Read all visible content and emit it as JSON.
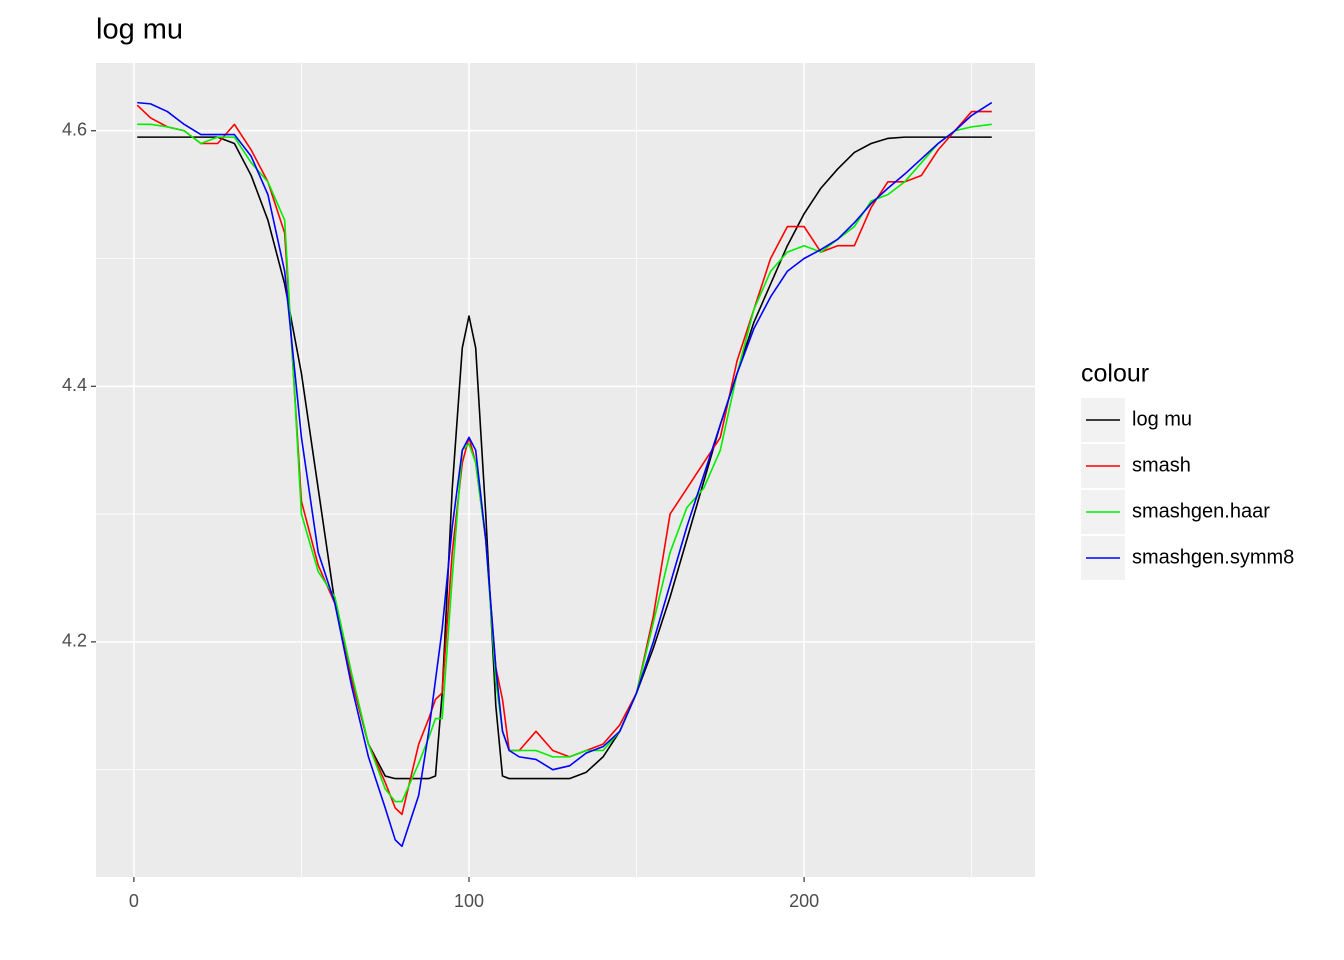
{
  "chart_data": {
    "type": "line",
    "title": "log mu",
    "legend_title": "colour",
    "legend_position": "right",
    "grid": true,
    "x": [
      1,
      5,
      10,
      15,
      20,
      25,
      30,
      35,
      40,
      45,
      50,
      55,
      60,
      65,
      70,
      75,
      78,
      80,
      85,
      88,
      90,
      92,
      95,
      98,
      100,
      102,
      105,
      108,
      110,
      112,
      115,
      120,
      125,
      130,
      135,
      140,
      145,
      150,
      155,
      160,
      165,
      170,
      175,
      180,
      185,
      190,
      195,
      200,
      205,
      210,
      215,
      220,
      225,
      230,
      235,
      240,
      245,
      250,
      256
    ],
    "xlim": [
      -11.3,
      268.9
    ],
    "xticks": [
      0,
      100,
      200
    ],
    "x_minor_ticks": [
      50,
      150,
      250
    ],
    "ylim": [
      4.016,
      4.653
    ],
    "yticks": [
      4.2,
      4.4,
      4.6
    ],
    "y_minor_ticks": [
      4.1,
      4.3,
      4.5
    ],
    "series": [
      {
        "name": "log mu",
        "color": "#000000",
        "values": [
          4.595,
          4.595,
          4.595,
          4.595,
          4.595,
          4.595,
          4.59,
          4.565,
          4.53,
          4.48,
          4.41,
          4.32,
          4.23,
          4.17,
          4.12,
          4.095,
          4.093,
          4.093,
          4.093,
          4.093,
          4.095,
          4.16,
          4.32,
          4.43,
          4.455,
          4.43,
          4.3,
          4.15,
          4.095,
          4.093,
          4.093,
          4.093,
          4.093,
          4.093,
          4.098,
          4.11,
          4.13,
          4.16,
          4.195,
          4.235,
          4.28,
          4.325,
          4.37,
          4.41,
          4.45,
          4.48,
          4.51,
          4.535,
          4.555,
          4.57,
          4.583,
          4.59,
          4.594,
          4.595,
          4.595,
          4.595,
          4.595,
          4.595,
          4.595
        ]
      },
      {
        "name": "smash",
        "color": "#ff0000",
        "values": [
          4.62,
          4.61,
          4.603,
          4.6,
          4.59,
          4.59,
          4.605,
          4.585,
          4.56,
          4.52,
          4.31,
          4.26,
          4.23,
          4.17,
          4.12,
          4.09,
          4.07,
          4.065,
          4.12,
          4.14,
          4.155,
          4.16,
          4.27,
          4.34,
          4.36,
          4.34,
          4.28,
          4.18,
          4.155,
          4.115,
          4.115,
          4.13,
          4.115,
          4.11,
          4.115,
          4.12,
          4.135,
          4.16,
          4.22,
          4.3,
          4.32,
          4.34,
          4.36,
          4.42,
          4.46,
          4.5,
          4.525,
          4.525,
          4.505,
          4.51,
          4.51,
          4.54,
          4.56,
          4.56,
          4.565,
          4.585,
          4.6,
          4.615,
          4.615
        ]
      },
      {
        "name": "smashgen.haar",
        "color": "#00ee00",
        "values": [
          4.605,
          4.605,
          4.603,
          4.6,
          4.59,
          4.595,
          4.595,
          4.575,
          4.56,
          4.53,
          4.3,
          4.255,
          4.235,
          4.175,
          4.12,
          4.085,
          4.075,
          4.075,
          4.105,
          4.125,
          4.14,
          4.14,
          4.25,
          4.35,
          4.355,
          4.34,
          4.28,
          4.17,
          4.13,
          4.115,
          4.115,
          4.115,
          4.11,
          4.11,
          4.115,
          4.115,
          4.13,
          4.16,
          4.215,
          4.27,
          4.305,
          4.32,
          4.35,
          4.41,
          4.46,
          4.49,
          4.505,
          4.51,
          4.505,
          4.515,
          4.525,
          4.545,
          4.55,
          4.56,
          4.575,
          4.59,
          4.6,
          4.603,
          4.605
        ]
      },
      {
        "name": "smashgen.symm8",
        "color": "#0000ff",
        "values": [
          4.622,
          4.621,
          4.615,
          4.605,
          4.597,
          4.597,
          4.597,
          4.58,
          4.55,
          4.49,
          4.36,
          4.27,
          4.23,
          4.165,
          4.11,
          4.07,
          4.045,
          4.04,
          4.08,
          4.13,
          4.17,
          4.21,
          4.29,
          4.35,
          4.36,
          4.35,
          4.28,
          4.18,
          4.13,
          4.115,
          4.11,
          4.108,
          4.1,
          4.103,
          4.113,
          4.118,
          4.13,
          4.16,
          4.2,
          4.245,
          4.29,
          4.33,
          4.37,
          4.41,
          4.445,
          4.47,
          4.49,
          4.5,
          4.507,
          4.515,
          4.528,
          4.543,
          4.555,
          4.566,
          4.578,
          4.59,
          4.6,
          4.612,
          4.622
        ]
      }
    ]
  }
}
